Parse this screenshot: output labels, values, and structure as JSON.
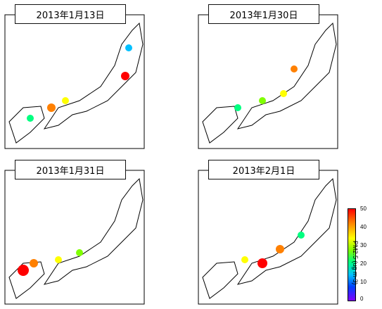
{
  "panels": [
    {
      "date": "2013年1月13日"
    },
    {
      "date": "2013年1月30日"
    },
    {
      "date": "2013年1月31日"
    },
    {
      "date": "2013年2月1日"
    }
  ],
  "legend": {
    "title": "PM2.5 (ug m-3)",
    "ticks": [
      "50",
      "40",
      "30",
      "20",
      "10",
      "0"
    ],
    "range": [
      0,
      50
    ],
    "colors": [
      "#8000ff",
      "#0040ff",
      "#00c0ff",
      "#00ff80",
      "#80ff00",
      "#ffff00",
      "#ff8000",
      "#ff0000"
    ]
  }
}
